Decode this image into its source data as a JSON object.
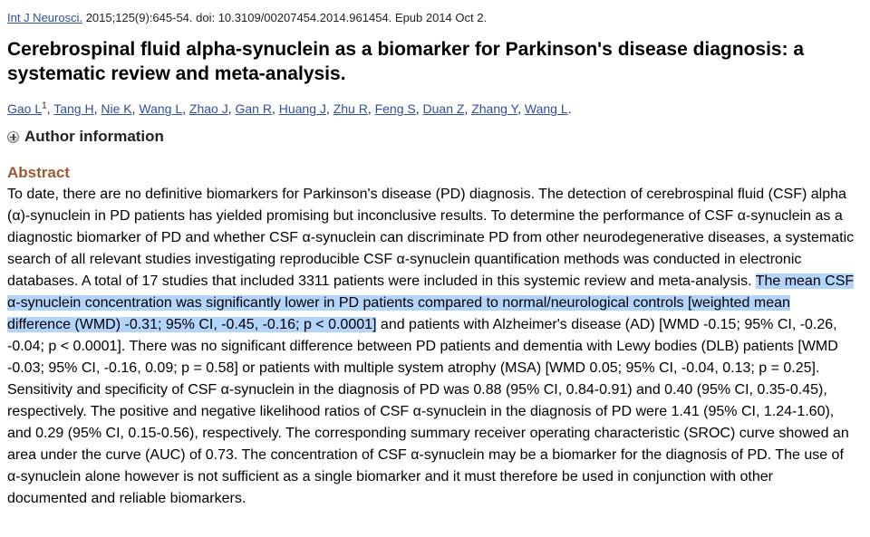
{
  "citation": {
    "journal": "Int J Neurosci.",
    "details": " 2015;125(9):645-54. doi: 10.3109/00207454.2014.961454. Epub 2014 Oct 2."
  },
  "article": {
    "title": "Cerebrospinal fluid alpha-synuclein as a biomarker for Parkinson's disease diagnosis: a systematic review and meta-analysis."
  },
  "authors": {
    "list": [
      "Gao L",
      "Tang H",
      "Nie K",
      "Wang L",
      "Zhao J",
      "Gan R",
      "Huang J",
      "Zhu R",
      "Feng S",
      "Duan Z",
      "Zhang Y",
      "Wang L"
    ],
    "first_superscript": "1",
    "separator": ", ",
    "end": "."
  },
  "author_information": {
    "label": "Author information",
    "icon": "plus-circle-icon"
  },
  "abstract": {
    "heading": "Abstract",
    "text_before": "To date, there are no definitive biomarkers for Parkinson's disease (PD) diagnosis. The detection of cerebrospinal fluid (CSF) alpha (α)-synuclein in PD patients has yielded promising but inconclusive results. To determine the performance of CSF α-synuclein as a diagnostic biomarker of PD and whether CSF α-synuclein can discriminate PD from other neurodegenerative diseases, a systematic search of all relevant studies investigating reproducible CSF α-synuclein quantification methods was conducted in electronic databases. A total of 17 studies that included 3311 patients were included in this systemic review and meta-analysis. ",
    "text_highlighted": "The mean CSF α-synuclein concentration was significantly lower in PD patients compared to normal/neurological controls [weighted mean difference (WMD) -0.31; 95% CI, -0.45, -0.16; p < 0.0001]",
    "text_after": " and patients with Alzheimer's disease (AD) [WMD -0.15; 95% CI, -0.26, -0.04; p < 0.0001]. There was no significant difference between PD patients and dementia with Lewy bodies (DLB) patients [WMD -0.03; 95% CI, -0.16, 0.09; p = 0.58] or patients with multiple system atrophy (MSA) [WMD 0.05; 95% CI, -0.04, 0.13; p = 0.25]. Sensitivity and specificity of CSF α-synuclein in the diagnosis of PD was 0.88 (95% CI, 0.84-0.91) and 0.40 (95% CI, 0.35-0.45), respectively. The positive and negative likelihood ratios of CSF α-synuclein in the diagnosis of PD were 1.41 (95% CI, 1.24-1.60), and 0.29 (95% CI, 0.15-0.56), respectively. The corresponding summary receiver operating characteristic (SROC) curve showed an area under the curve (AUC) of 0.73. The concentration of CSF α-synuclein may be a biomarker for the diagnosis of PD. The use of α-synuclein alone however is not sufficient as a single biomarker and it must therefore be used in conjunction with other documented and reliable biomarkers."
  },
  "colors": {
    "link": "#2f4f9f",
    "abstract_heading": "#9b5a33",
    "highlight": "#b3d4fc"
  }
}
